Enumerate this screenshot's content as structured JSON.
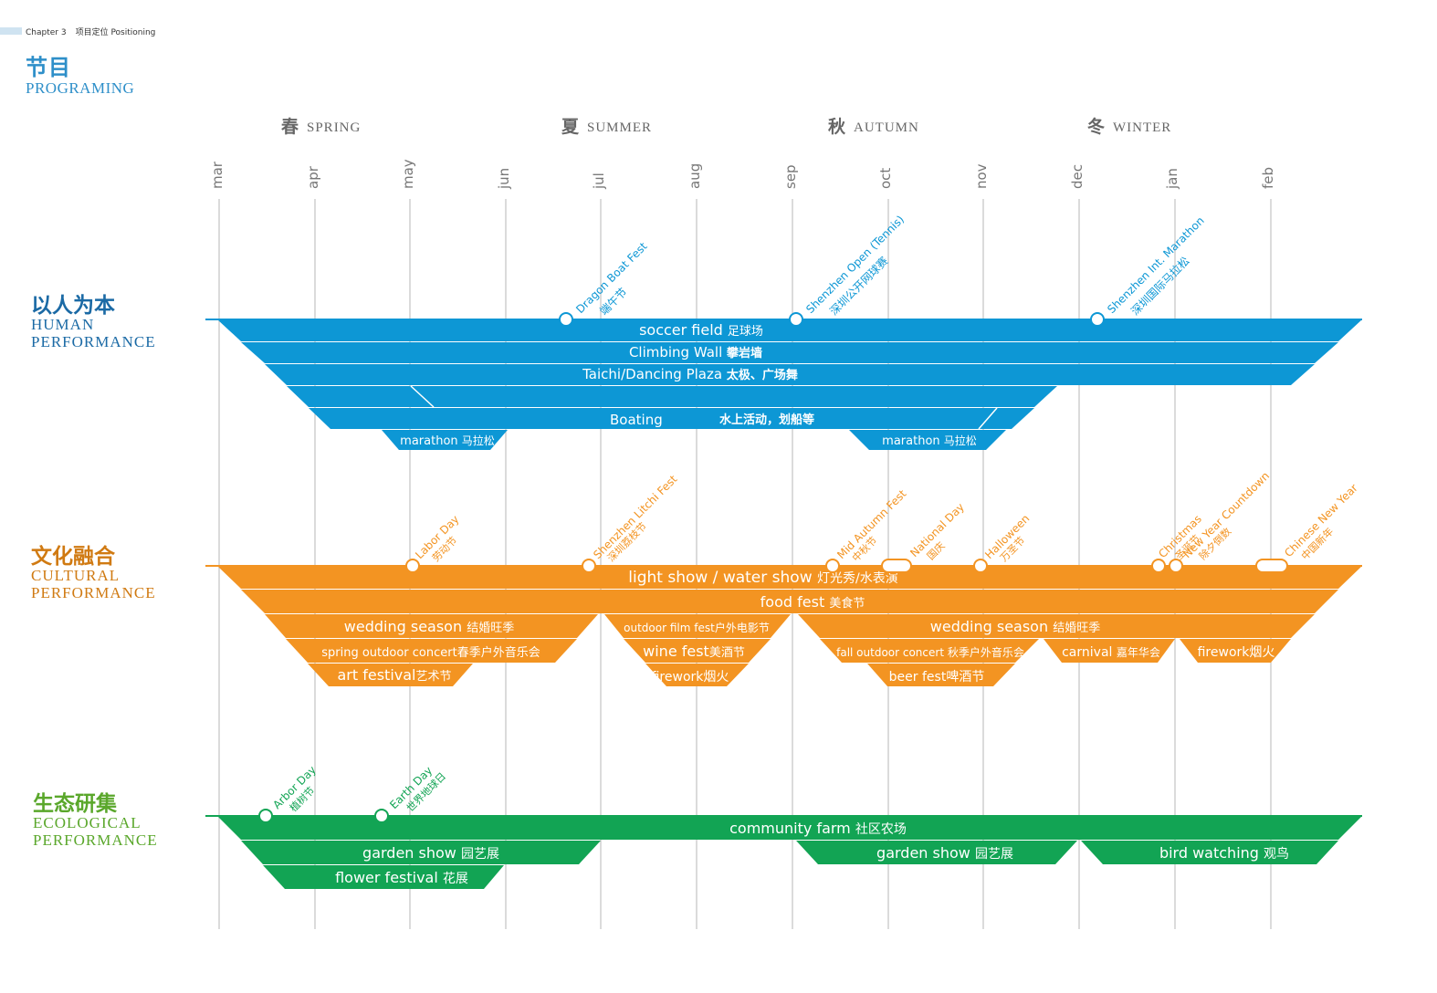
{
  "header": {
    "chapter": "Chapter 3",
    "section": "项目定位 Positioning",
    "title_cn": "节目",
    "title_en": "PROGRAMING"
  },
  "seasons": [
    {
      "cn": "春",
      "en": "SPRING"
    },
    {
      "cn": "夏",
      "en": "SUMMER"
    },
    {
      "cn": "秋",
      "en": "AUTUMN"
    },
    {
      "cn": "冬",
      "en": "WINTER"
    }
  ],
  "months": [
    "mar",
    "apr",
    "may",
    "jun",
    "jul",
    "aug",
    "sep",
    "oct",
    "nov",
    "dec",
    "jan",
    "feb"
  ],
  "colors": {
    "human": "#0d97d5",
    "cultural": "#f39422",
    "ecological": "#12a454",
    "month_line": "#b7b7b7"
  },
  "categories": [
    {
      "key": "human",
      "title_cn": "以人为本",
      "title_en_1": "HUMAN",
      "title_en_2": "PERFORMANCE",
      "events": [
        {
          "label_1": "Dragon Boat Fest",
          "label_2": "端午节"
        },
        {
          "label_1": "Shenzhen Open (Tennis)",
          "label_2": "深圳公开网球赛"
        },
        {
          "label_1": "Shenzhen Int. Marathon",
          "label_2": "深圳国际马拉松"
        }
      ],
      "bands": [
        {
          "en": "soccer field",
          "cn": "足球场"
        },
        {
          "en": "Climbing Wall",
          "cn": "攀岩墙"
        },
        {
          "en": "Taichi/Dancing Plaza",
          "cn": "太极、广场舞"
        },
        {
          "en": "Boating",
          "cn": "水上活动，划船等"
        },
        {
          "en": "marathon",
          "cn": "马拉松"
        },
        {
          "en": "marathon",
          "cn": "马拉松"
        }
      ]
    },
    {
      "key": "cultural",
      "title_cn": "文化融合",
      "title_en_1": "CULTURAL",
      "title_en_2": "PERFORMANCE",
      "events": [
        {
          "label_1": "Labor Day",
          "label_2": "劳动节"
        },
        {
          "label_1": "Shenzhen Litchi Fest",
          "label_2": "深圳荔枝节"
        },
        {
          "label_1": "Mid Autumn Fest",
          "label_2": "中秋节"
        },
        {
          "label_1": "National Day",
          "label_2": "国庆"
        },
        {
          "label_1": "Halloween",
          "label_2": "万圣节"
        },
        {
          "label_1": "Christmas",
          "label_2": "圣诞节"
        },
        {
          "label_1": "New Year Countdown",
          "label_2": "除夕倒数"
        },
        {
          "label_1": "Chinese New Year",
          "label_2": "中国新年"
        }
      ],
      "bands": [
        {
          "en": "light show / water show",
          "cn": "灯光秀/水表演"
        },
        {
          "en": "food fest",
          "cn": "美食节"
        },
        {
          "en": "wedding season",
          "cn": "结婚旺季"
        },
        {
          "en": "outdoor film fest",
          "cn": "户外电影节"
        },
        {
          "en": "wedding season",
          "cn": "结婚旺季"
        },
        {
          "en": "spring outdoor concert",
          "cn": "春季户外音乐会"
        },
        {
          "en": "wine fest",
          "cn": "美酒节"
        },
        {
          "en": "fall outdoor concert",
          "cn": "秋季户外音乐会"
        },
        {
          "en": "carnival",
          "cn": "嘉年华会"
        },
        {
          "en": "firework",
          "cn": "烟火"
        },
        {
          "en": "art festival",
          "cn": "艺术节"
        },
        {
          "en": "firework",
          "cn": "烟火"
        },
        {
          "en": "beer fest",
          "cn": "啤酒节"
        }
      ]
    },
    {
      "key": "ecological",
      "title_cn": "生态研集",
      "title_en_1": "ECOLOGICAL",
      "title_en_2": "PERFORMANCE",
      "events": [
        {
          "label_1": "Arbor Day",
          "label_2": "植树节"
        },
        {
          "label_1": "Earth Day",
          "label_2": "世界地球日"
        }
      ],
      "bands": [
        {
          "en": "community farm",
          "cn": "社区农场"
        },
        {
          "en": "garden show",
          "cn": "园艺展"
        },
        {
          "en": "garden show",
          "cn": "园艺展"
        },
        {
          "en": "bird watching",
          "cn": "观鸟"
        },
        {
          "en": "flower festival",
          "cn": "花展"
        }
      ]
    }
  ]
}
